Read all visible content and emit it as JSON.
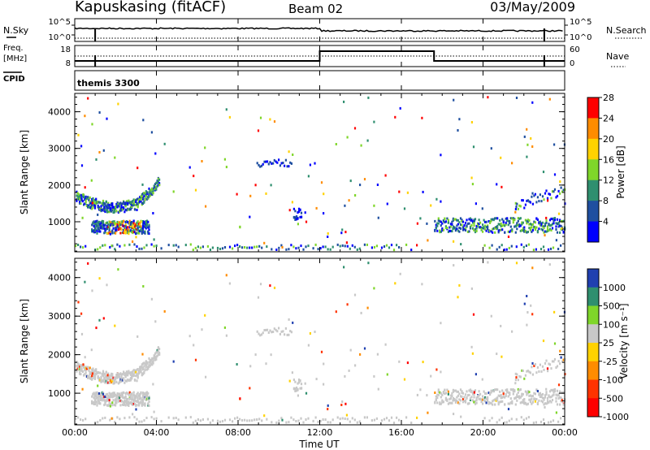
{
  "header": {
    "station": "Kapuskasing (fitACF)",
    "beam": "Beam 02",
    "date": "03/May/2009"
  },
  "nsky_panel": {
    "left_label": "N.Sky",
    "left_ticks": [
      "10^5",
      "10^0"
    ],
    "right_ticks": [
      "10^5",
      "10^0"
    ],
    "right_label": "N.Search"
  },
  "freq_panel": {
    "left_label_1": "Freq.",
    "left_label_2": "[MHz]",
    "left_ticks": [
      "18",
      "8"
    ],
    "right_ticks": [
      "60",
      "0"
    ],
    "right_label": "Nave"
  },
  "cpid_panel": {
    "label": "CPID",
    "value": "themis 3300"
  },
  "chart_data": [
    {
      "type": "heatmap",
      "panel": "power",
      "ylabel": "Slant Range [km]",
      "ylim": [
        180,
        4500
      ],
      "yticks": [
        "1000",
        "2000",
        "3000",
        "4000"
      ],
      "xlim": [
        0,
        24
      ],
      "colorbar_label": "Power [dB]",
      "colorbar_ticks": [
        "4",
        "8",
        "12",
        "16",
        "20",
        "24",
        "28"
      ],
      "colors": [
        "#0000ff",
        "#1f4fa0",
        "#2f8f6f",
        "#7fd62a",
        "#ffd200",
        "#ff8c00",
        "#ff0000"
      ]
    },
    {
      "type": "heatmap",
      "panel": "velocity",
      "ylabel": "Slant Range [km]",
      "ylim": [
        180,
        4500
      ],
      "yticks": [
        "1000",
        "2000",
        "3000",
        "4000"
      ],
      "xlim": [
        0,
        24
      ],
      "colorbar_label": "Velocity [m s⁻¹]",
      "colorbar_ticks": [
        "1000",
        "500",
        "100",
        "25",
        "-25",
        "-100",
        "-500",
        "-1000"
      ],
      "colors": [
        "#2040b0",
        "#2f8f6f",
        "#7fd62a",
        "#c8c8c8",
        "#ffd200",
        "#ff8c00",
        "#ff3300",
        "#ff0000"
      ]
    }
  ],
  "x_axis": {
    "ticks": [
      "00:00",
      "04:00",
      "08:00",
      "12:00",
      "16:00",
      "20:00",
      "00:00"
    ],
    "label": "Time UT"
  }
}
